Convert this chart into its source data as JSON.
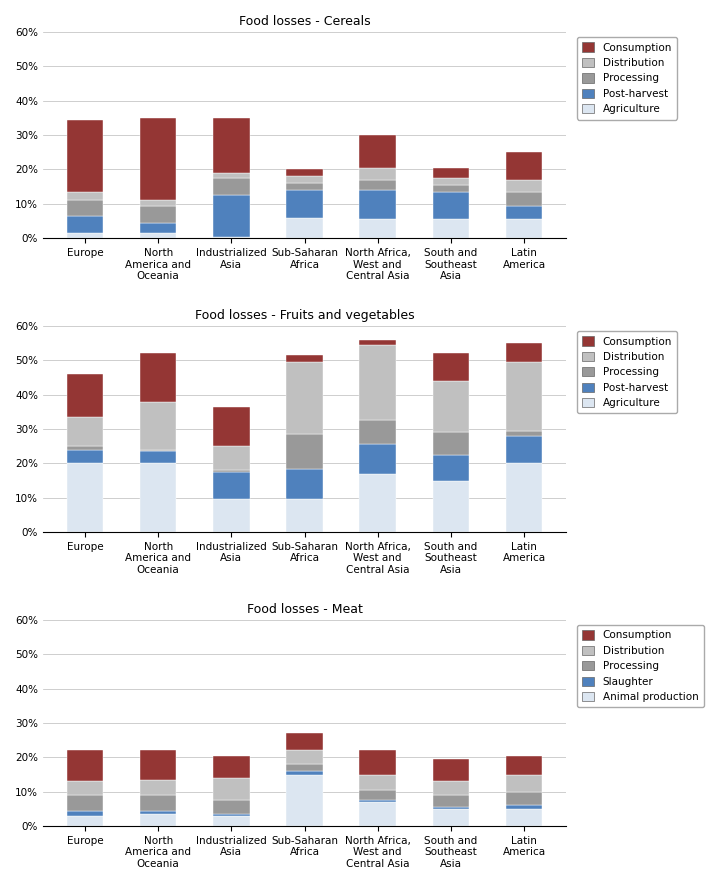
{
  "categories": [
    "Europe",
    "North\nAmerica and\nOceania",
    "Industrialized\nAsia",
    "Sub-Saharan\nAfrica",
    "North Africa,\nWest and\nCentral Asia",
    "South and\nSoutheast\nAsia",
    "Latin\nAmerica"
  ],
  "chart1": {
    "title": "Food losses - Cereals",
    "legend_labels": [
      "Consumption",
      "Distribution",
      "Processing",
      "Post-harvest",
      "Agriculture"
    ],
    "layer_order": [
      "Agriculture",
      "Post-harvest",
      "Processing",
      "Distribution",
      "Consumption"
    ],
    "data": {
      "Agriculture": [
        1.5,
        1.5,
        0.5,
        6.0,
        5.5,
        5.5,
        5.5
      ],
      "Post-harvest": [
        5.0,
        3.0,
        12.0,
        8.0,
        8.5,
        8.0,
        4.0
      ],
      "Processing": [
        4.5,
        5.0,
        5.0,
        2.0,
        3.0,
        2.0,
        4.0
      ],
      "Distribution": [
        2.5,
        1.5,
        1.5,
        2.0,
        3.5,
        2.0,
        3.5
      ],
      "Consumption": [
        21.0,
        24.0,
        16.0,
        2.0,
        9.5,
        3.0,
        8.0
      ]
    }
  },
  "chart2": {
    "title": "Food losses - Fruits and vegetables",
    "legend_labels": [
      "Consumption",
      "Distribution",
      "Processing",
      "Post-harvest",
      "Agriculture"
    ],
    "layer_order": [
      "Agriculture",
      "Post-harvest",
      "Processing",
      "Distribution",
      "Consumption"
    ],
    "data": {
      "Agriculture": [
        20.0,
        20.0,
        9.5,
        9.5,
        17.0,
        15.0,
        20.0
      ],
      "Post-harvest": [
        4.0,
        3.5,
        8.0,
        9.0,
        8.5,
        7.5,
        8.0
      ],
      "Processing": [
        1.0,
        0.5,
        0.5,
        10.0,
        7.0,
        6.5,
        1.5
      ],
      "Distribution": [
        8.5,
        14.0,
        7.0,
        21.0,
        22.0,
        15.0,
        20.0
      ],
      "Consumption": [
        12.5,
        14.0,
        11.5,
        2.0,
        1.5,
        8.0,
        5.5
      ]
    }
  },
  "chart3": {
    "title": "Food losses - Meat",
    "legend_labels": [
      "Consumption",
      "Distribution",
      "Processing",
      "Slaughter",
      "Animal production"
    ],
    "layer_order": [
      "Animal production",
      "Slaughter",
      "Processing",
      "Distribution",
      "Consumption"
    ],
    "data": {
      "Animal production": [
        3.0,
        3.5,
        3.0,
        15.0,
        7.0,
        5.0,
        5.0
      ],
      "Slaughter": [
        1.5,
        1.0,
        0.5,
        1.0,
        0.5,
        0.5,
        1.0
      ],
      "Processing": [
        4.5,
        4.5,
        4.0,
        2.0,
        3.0,
        3.5,
        4.0
      ],
      "Distribution": [
        4.0,
        4.5,
        6.5,
        4.0,
        4.5,
        4.0,
        5.0
      ],
      "Consumption": [
        9.0,
        8.5,
        6.5,
        5.0,
        7.0,
        6.5,
        5.5
      ]
    }
  },
  "colors": {
    "Agriculture": "#dce6f1",
    "Post-harvest": "#4f81bd",
    "Processing": "#999999",
    "Distribution": "#c0c0c0",
    "Consumption": "#943634",
    "Animal production": "#dce6f1",
    "Slaughter": "#4f81bd"
  },
  "ylim": [
    0,
    0.6
  ],
  "yticks": [
    0.0,
    0.1,
    0.2,
    0.3,
    0.4,
    0.5,
    0.6
  ],
  "ytick_labels": [
    "0%",
    "10%",
    "20%",
    "30%",
    "40%",
    "50%",
    "60%"
  ],
  "bar_width": 0.5,
  "legend_fontsize": 7.5,
  "title_fontsize": 9,
  "tick_fontsize": 7.5
}
